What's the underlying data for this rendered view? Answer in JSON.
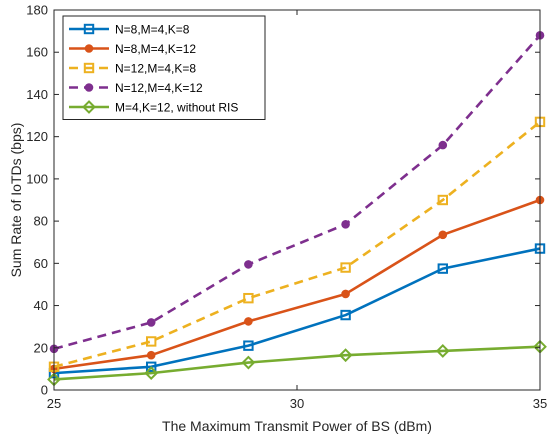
{
  "chart_data": {
    "type": "line",
    "xlabel": "The Maximum Transmit Power of BS (dBm)",
    "ylabel": "Sum Rate of IoTDs (bps)",
    "xlim": [
      25,
      35
    ],
    "ylim": [
      0,
      180
    ],
    "xticks": [
      25,
      30,
      35
    ],
    "yticks": [
      0,
      20,
      40,
      60,
      80,
      100,
      120,
      140,
      160,
      180
    ],
    "grid": false,
    "legend_position": "top-left",
    "x": [
      25,
      27,
      29,
      31,
      33,
      35
    ],
    "series": [
      {
        "name": "N=8,M=4,K=8",
        "values": [
          8,
          11,
          21,
          35.5,
          57.5,
          67
        ],
        "color": "#0072BD",
        "line_style": "solid",
        "marker": "square"
      },
      {
        "name": "N=8,M=4,K=12",
        "values": [
          10,
          16.5,
          32.5,
          45.5,
          73.5,
          90
        ],
        "color": "#D95319",
        "line_style": "solid",
        "marker": "circle"
      },
      {
        "name": "N=12,M=4,K=8",
        "values": [
          11,
          23,
          43.5,
          58,
          90,
          127
        ],
        "color": "#EDB120",
        "line_style": "dashed",
        "marker": "square"
      },
      {
        "name": "N=12,M=4,K=12",
        "values": [
          19.5,
          32,
          59.5,
          78.5,
          116,
          168
        ],
        "color": "#7E2F8E",
        "line_style": "dashed",
        "marker": "circle"
      },
      {
        "name": "M=4,K=12, without RIS",
        "values": [
          5,
          8,
          13,
          16.5,
          18.5,
          20.5
        ],
        "color": "#77AC30",
        "line_style": "solid",
        "marker": "diamond"
      }
    ]
  }
}
